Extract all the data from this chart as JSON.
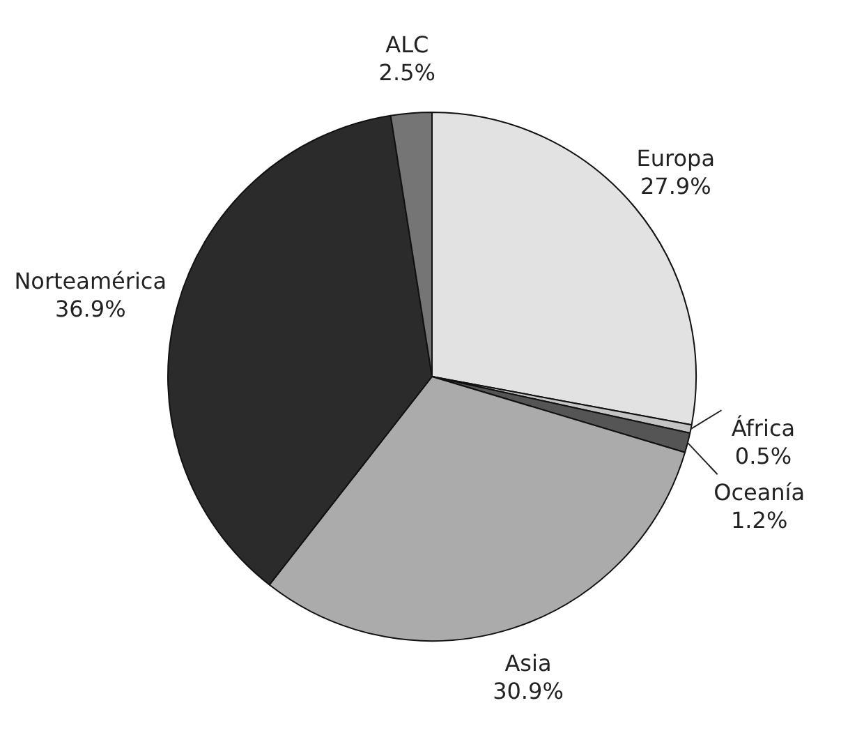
{
  "chart_data": {
    "type": "pie",
    "categories": [
      "Europa",
      "África",
      "Oceanía",
      "Asia",
      "Norteamérica",
      "ALC"
    ],
    "values": [
      27.9,
      0.5,
      1.2,
      30.9,
      36.9,
      2.5
    ],
    "value_labels": [
      "27.9%",
      "0.5%",
      "1.2%",
      "30.9%",
      "36.9%",
      "2.5%"
    ],
    "colors": [
      "#e2e2e2",
      "#c4c4c4",
      "#555555",
      "#ababab",
      "#2b2b2b",
      "#757575"
    ],
    "legend": false
  }
}
